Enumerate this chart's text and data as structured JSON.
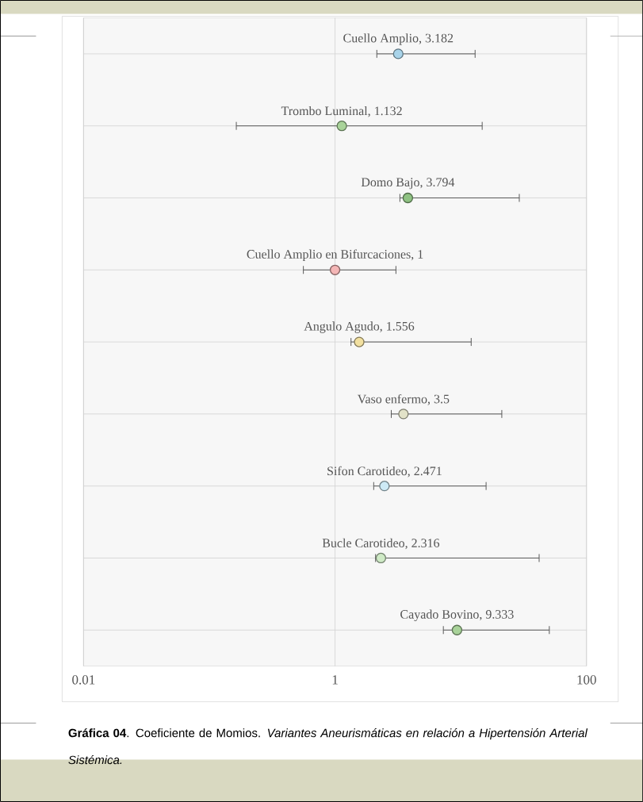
{
  "chart_data": {
    "type": "scatter",
    "orientation": "horizontal",
    "log": "x",
    "categories": [
      null,
      null,
      null,
      null,
      null,
      null,
      null,
      null,
      null
    ],
    "values": [
      3.182,
      1.132,
      3.794,
      1,
      1.556,
      3.5,
      2.471,
      2.316,
      9.333
    ],
    "errors": [
      [
        2.15,
        13.0
      ],
      [
        0.164,
        14.8
      ],
      [
        3.28,
        29.2
      ],
      [
        0.56,
        3.05
      ],
      [
        1.34,
        12.1
      ],
      [
        2.8,
        21.2
      ],
      [
        2.03,
        15.9
      ],
      [
        2.1,
        42
      ],
      [
        7.27,
        50.6
      ]
    ],
    "colors": [
      "#a9d4ea",
      "#a9d39a",
      "#8fc283",
      "#f4b6b6",
      "#f2e0a0",
      "#e2e2c8",
      "#cdeaf6",
      "#cfeac6",
      "#a9d39a"
    ],
    "value_labels": [
      "Cuello Amplio, 3.182",
      "Trombo Luminal, 1.132",
      "Domo Bajo, 3.794",
      "Cuello Amplio en Bifurcaciones, 1",
      "Angulo Agudo, 1.556",
      "Vaso enfermo, 3.5",
      "Sifon Carotideo, 2.471",
      "Bucle Carotideo, 2.316",
      "Cayado Bovino, 9.333"
    ],
    "xlim": [
      0.01,
      100
    ],
    "xticks": [
      0.01,
      1,
      100
    ],
    "grid": true,
    "annotations": [
      "**Gráfica 04**. Coeficiente de Momios. *Variantes Aneurismáticas en relación a Hipertensión Arterial Sistémica.*"
    ]
  }
}
